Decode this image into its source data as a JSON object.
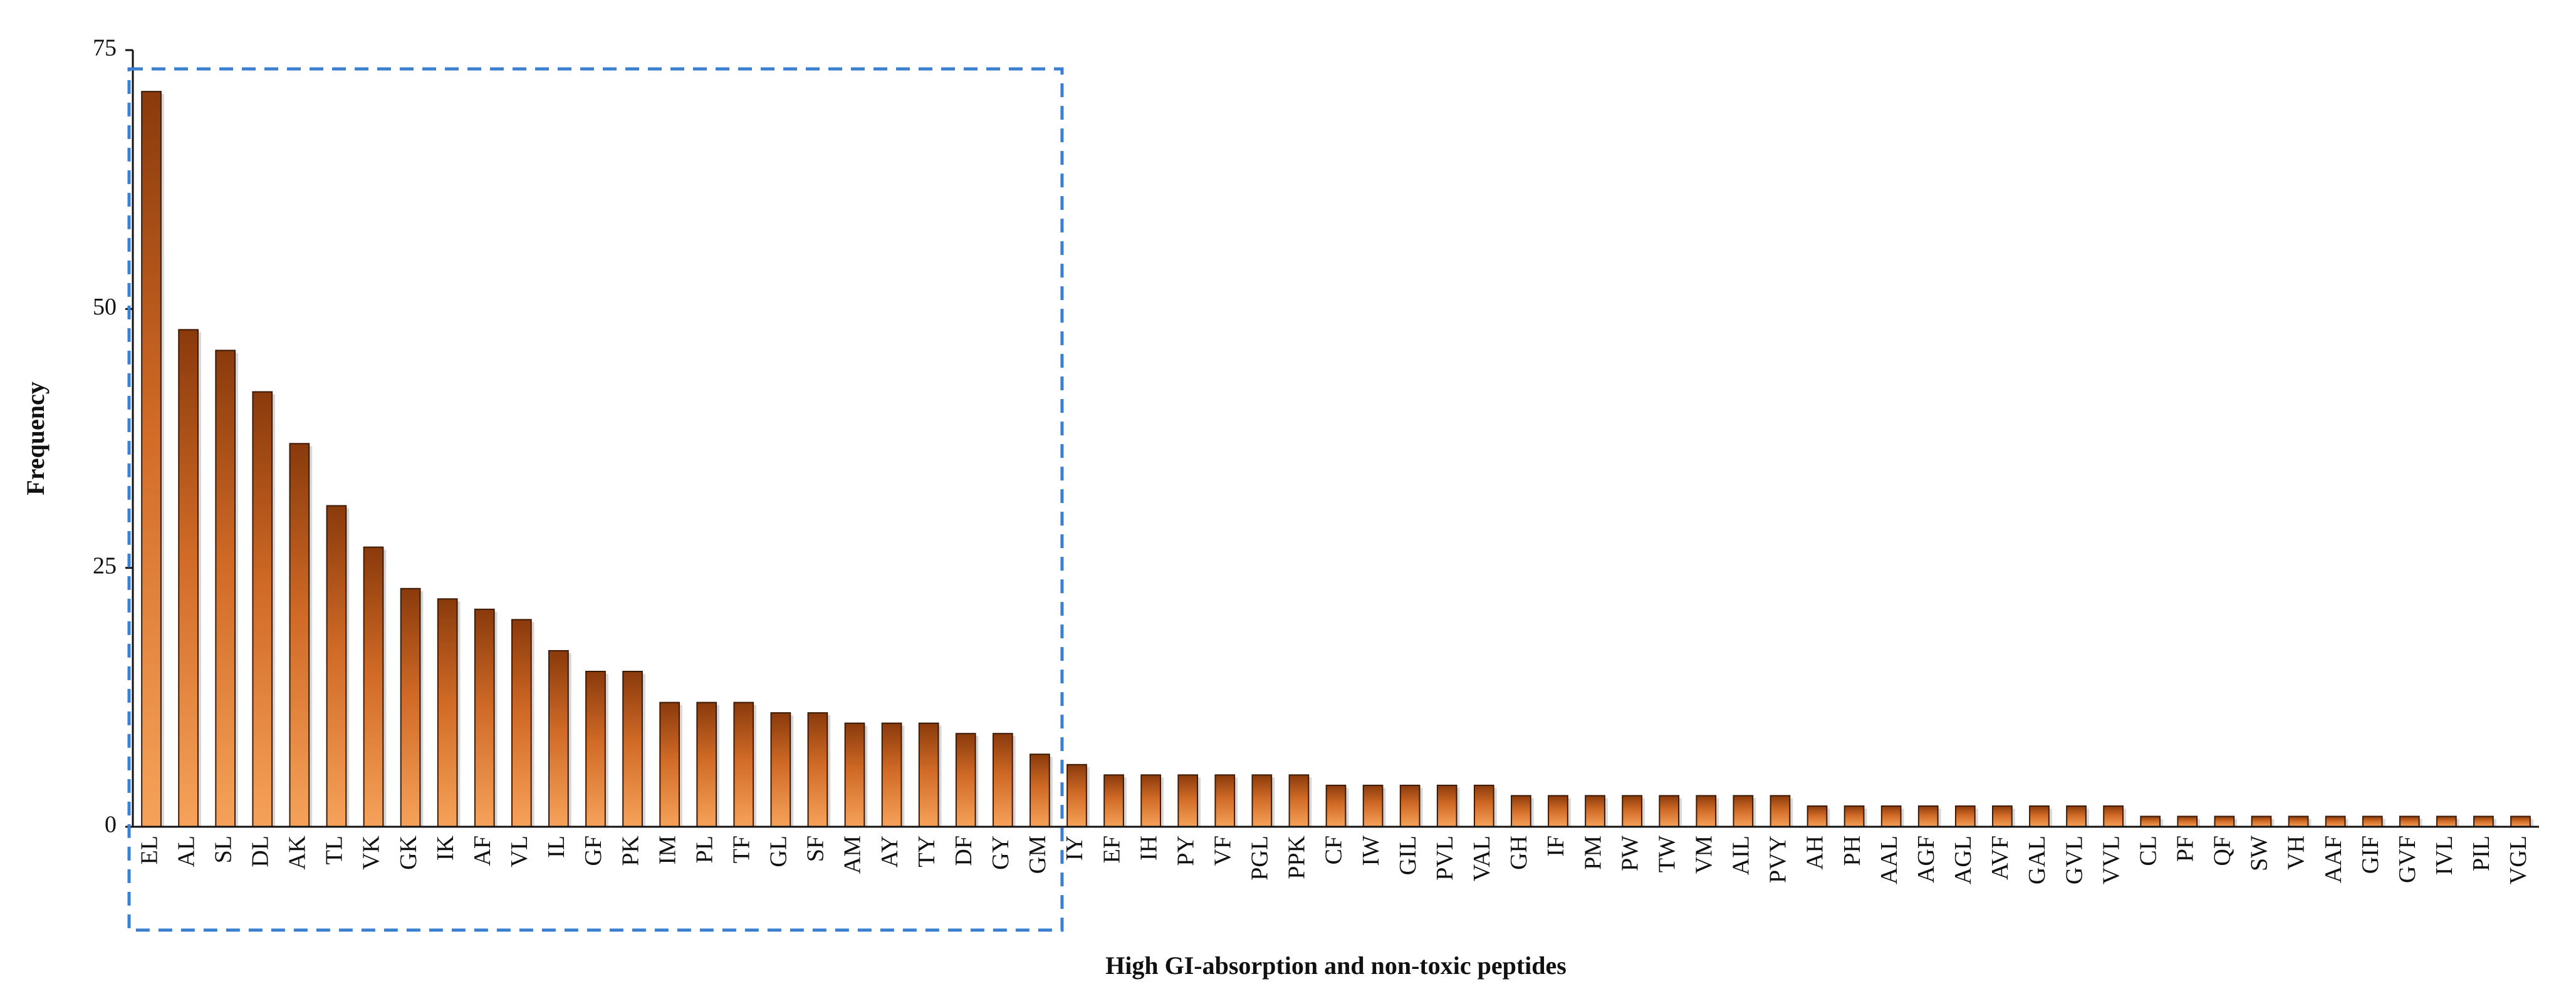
{
  "chart_data": {
    "type": "bar",
    "xlabel": "High GI-absorption and non-toxic peptides",
    "ylabel": "Frequency",
    "ylim": [
      0,
      75
    ],
    "yticks": [
      0,
      25,
      50,
      75
    ],
    "grid": false,
    "legend": "none",
    "categories": [
      "EL",
      "AL",
      "SL",
      "DL",
      "AK",
      "TL",
      "VK",
      "GK",
      "IK",
      "AF",
      "VL",
      "IL",
      "GF",
      "PK",
      "IM",
      "PL",
      "TF",
      "GL",
      "SF",
      "AM",
      "AY",
      "TY",
      "DF",
      "GY",
      "GM",
      "IY",
      "EF",
      "IH",
      "PY",
      "VF",
      "PGL",
      "PPK",
      "CF",
      "IW",
      "GIL",
      "PVL",
      "VAL",
      "GH",
      "IF",
      "PM",
      "PW",
      "TW",
      "VM",
      "AIL",
      "PVY",
      "AH",
      "PH",
      "AAL",
      "AGF",
      "AGL",
      "AVF",
      "GAL",
      "GVL",
      "VVL",
      "CL",
      "PF",
      "QF",
      "SW",
      "VH",
      "AAF",
      "GIF",
      "GVF",
      "IVL",
      "PIL",
      "VGL"
    ],
    "values": [
      71,
      48,
      46,
      42,
      37,
      31,
      27,
      23,
      22,
      21,
      20,
      17,
      15,
      15,
      12,
      12,
      12,
      11,
      11,
      10,
      10,
      10,
      9,
      9,
      7,
      6,
      5,
      5,
      5,
      5,
      5,
      5,
      4,
      4,
      4,
      4,
      4,
      3,
      3,
      3,
      3,
      3,
      3,
      3,
      3,
      2,
      2,
      2,
      2,
      2,
      2,
      2,
      2,
      2,
      1,
      1,
      1,
      1,
      1,
      1,
      1,
      1,
      1,
      1,
      1
    ],
    "highlight": {
      "from": "EL",
      "to": "GM",
      "style": "dashed box",
      "color": "#3a7fd0"
    },
    "colors": {
      "bar_light": "#f6a25a",
      "bar_mid": "#e07d34",
      "bar_dark": "#8a3a0c",
      "axis": "#111111"
    }
  }
}
